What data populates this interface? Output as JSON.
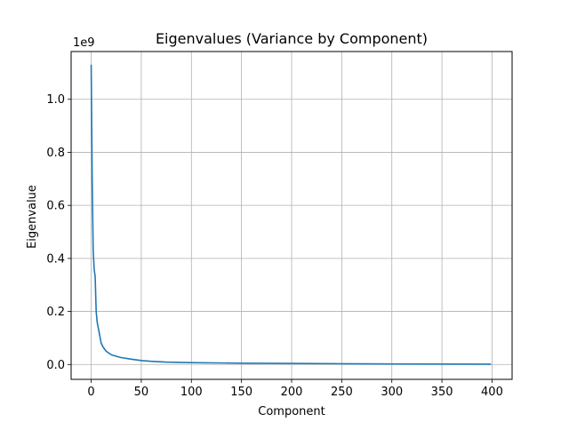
{
  "chart_data": {
    "type": "line",
    "title": "Eigenvalues (Variance by Component)",
    "xlabel": "Component",
    "ylabel": "Eigenvalue",
    "y_offset_label": "1e9",
    "xlim": [
      -20,
      420
    ],
    "ylim": [
      -0.056,
      1.18
    ],
    "y_scale_factor": 1000000000,
    "grid": true,
    "xticks": [
      0,
      50,
      100,
      150,
      200,
      250,
      300,
      350,
      400
    ],
    "yticks": [
      0.0,
      0.2,
      0.4,
      0.6,
      0.8,
      1.0
    ],
    "ytick_labels": [
      "0.0",
      "0.2",
      "0.4",
      "0.6",
      "0.8",
      "1.0"
    ],
    "series": [
      {
        "color": "#1f77b4",
        "x": [
          0,
          1,
          2,
          3,
          4,
          5,
          6,
          7,
          8,
          10,
          12,
          15,
          20,
          25,
          30,
          40,
          50,
          60,
          75,
          100,
          125,
          150,
          200,
          250,
          300,
          350,
          399
        ],
        "y": [
          1.13,
          0.7,
          0.43,
          0.36,
          0.33,
          0.2,
          0.16,
          0.14,
          0.12,
          0.08,
          0.065,
          0.05,
          0.037,
          0.031,
          0.026,
          0.02,
          0.015,
          0.012,
          0.009,
          0.007,
          0.006,
          0.005,
          0.004,
          0.003,
          0.002,
          0.0015,
          0.001
        ]
      }
    ]
  }
}
